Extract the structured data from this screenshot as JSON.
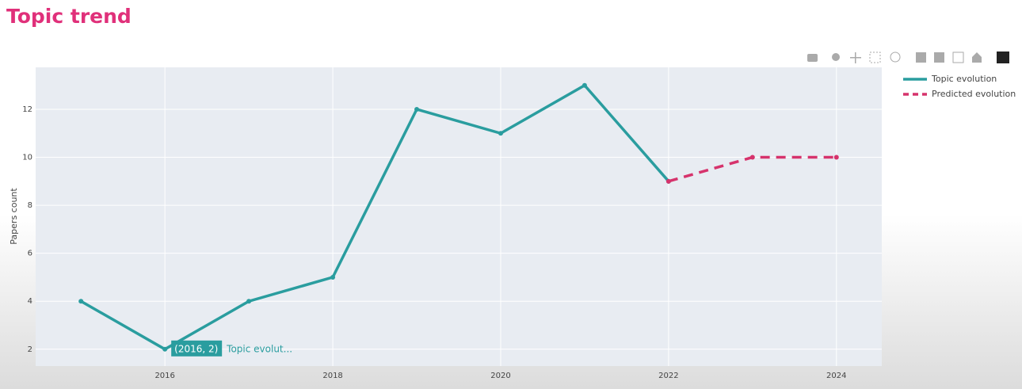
{
  "title": "Topic trend",
  "chart_data": {
    "type": "line",
    "ylabel": "Papers count",
    "x": [
      2015,
      2016,
      2017,
      2018,
      2019,
      2020,
      2021,
      2022,
      2023,
      2024
    ],
    "series": [
      {
        "name": "Topic evolution",
        "color": "#2a9d9f",
        "dash": false,
        "values": [
          4,
          2,
          4,
          5,
          12,
          11,
          13,
          9,
          null,
          null
        ]
      },
      {
        "name": "Predicted evolution",
        "color": "#d6336c",
        "dash": true,
        "values": [
          null,
          null,
          null,
          null,
          null,
          null,
          null,
          9,
          10,
          10
        ]
      }
    ],
    "xlim": [
      2014.46,
      2024.54
    ],
    "xticks": [
      2016,
      2018,
      2020,
      2022,
      2024
    ],
    "ylim": [
      1.3,
      13.75
    ],
    "yticks": [
      2,
      4,
      6,
      8,
      10,
      12
    ],
    "grid": true,
    "legend": "top-right",
    "hover": {
      "label": "(2016, 2)",
      "name": "Topic evolut..."
    }
  }
}
